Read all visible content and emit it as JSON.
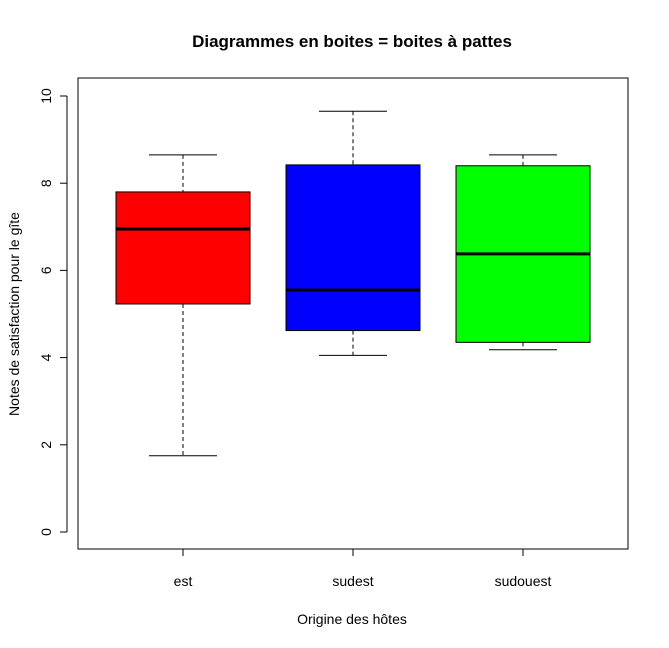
{
  "chart_data": {
    "type": "boxplot",
    "title": "Diagrammes en boites = boites à pattes",
    "xlabel": "Origine des hôtes",
    "ylabel": "Notes de satisfaction pour le gîte",
    "categories": [
      "est",
      "sudest",
      "sudouest"
    ],
    "ylim": [
      0,
      10
    ],
    "yticks": [
      0,
      2,
      4,
      6,
      8,
      10
    ],
    "grid": false,
    "series": [
      {
        "category": "est",
        "whisker_low": 1.75,
        "q1": 5.23,
        "median": 6.95,
        "q3": 7.8,
        "whisker_high": 8.65,
        "color": "#ff0000"
      },
      {
        "category": "sudest",
        "whisker_low": 4.05,
        "q1": 4.62,
        "median": 5.55,
        "q3": 8.42,
        "whisker_high": 9.65,
        "color": "#0000ff"
      },
      {
        "category": "sudouest",
        "whisker_low": 4.18,
        "q1": 4.35,
        "median": 6.38,
        "q3": 8.4,
        "whisker_high": 8.65,
        "color": "#00ff00"
      }
    ]
  }
}
